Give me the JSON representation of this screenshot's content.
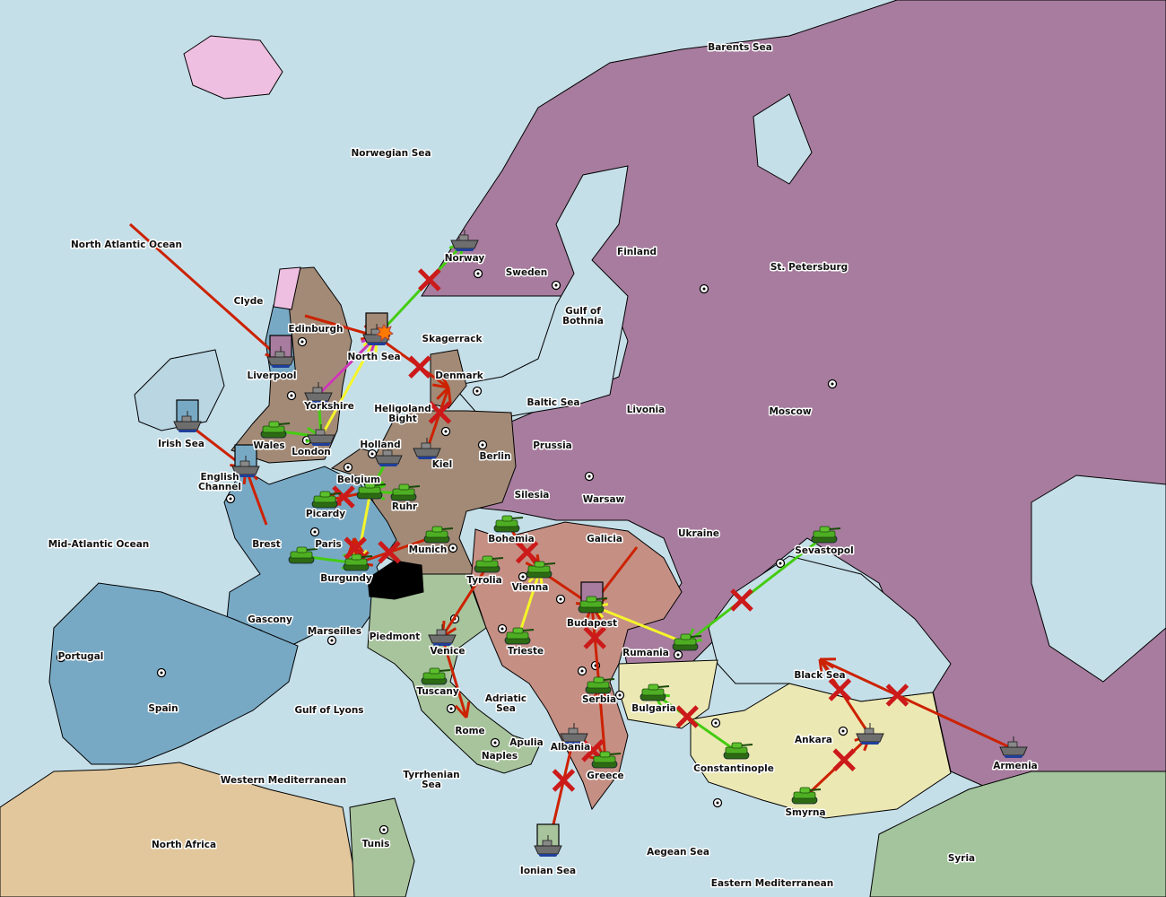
{
  "colors": {
    "sea": "#c5dfe9",
    "russia": "#a77c9e",
    "england": "#a28a76",
    "germany": "#a28a76",
    "france": "#78a9c4",
    "italy": "#a8c49c",
    "austria": "#c58f84",
    "turkey": "#ece8b4",
    "neutral_africa": "#e2c79c",
    "iceland": "#eebfe0",
    "switzerland": "#000000",
    "order_attack": "#cc2200",
    "order_support": "#f5f52a",
    "order_move": "#44cc11",
    "order_convoy": "#cc33bb"
  },
  "provinces": [
    [
      "Barents Sea"
    ],
    [
      "Norwegian Sea"
    ],
    [
      "North Atlantic Ocean"
    ],
    [
      "Norway"
    ],
    [
      "Sweden"
    ],
    [
      "Finland"
    ],
    [
      "St. Petersburg"
    ],
    [
      "Clyde"
    ],
    [
      "Edinburgh"
    ],
    [
      "Liverpool"
    ],
    [
      "North Sea"
    ],
    [
      "Skagerrack"
    ],
    [
      "Gulf of",
      "Bothnia"
    ],
    [
      "Denmark"
    ],
    [
      "Baltic Sea"
    ],
    [
      "Livonia"
    ],
    [
      "Moscow"
    ],
    [
      "Yorkshire"
    ],
    [
      "Heligoland",
      "Bight"
    ],
    [
      "Irish Sea"
    ],
    [
      "Wales"
    ],
    [
      "London"
    ],
    [
      "Holland"
    ],
    [
      "Kiel"
    ],
    [
      "Berlin"
    ],
    [
      "Prussia"
    ],
    [
      "English",
      "Channel"
    ],
    [
      "Belgium"
    ],
    [
      "Silesia"
    ],
    [
      "Warsaw"
    ],
    [
      "Picardy"
    ],
    [
      "Ruhr"
    ],
    [
      "Mid-Atlantic Ocean"
    ],
    [
      "Brest"
    ],
    [
      "Paris"
    ],
    [
      "Munich"
    ],
    [
      "Bohemia"
    ],
    [
      "Galicia"
    ],
    [
      "Ukraine"
    ],
    [
      "Sevastopol"
    ],
    [
      "Burgundy"
    ],
    [
      "Tyrolia"
    ],
    [
      "Vienna"
    ],
    [
      "Gascony"
    ],
    [
      "Budapest"
    ],
    [
      "Marseilles"
    ],
    [
      "Piedmont"
    ],
    [
      "Portugal"
    ],
    [
      "Venice"
    ],
    [
      "Trieste"
    ],
    [
      "Rumania"
    ],
    [
      "Black Sea"
    ],
    [
      "Tuscany"
    ],
    [
      "Serbia"
    ],
    [
      "Bulgaria"
    ],
    [
      "Spain"
    ],
    [
      "Gulf of Lyons"
    ],
    [
      "Adriatic",
      "Sea"
    ],
    [
      "Ankara"
    ],
    [
      "Armenia"
    ],
    [
      "Rome"
    ],
    [
      "Apulia"
    ],
    [
      "Albania"
    ],
    [
      "Naples"
    ],
    [
      "Constantinople"
    ],
    [
      "Greece"
    ],
    [
      "Western Mediterranean"
    ],
    [
      "Tyrrhenian",
      "Sea"
    ],
    [
      "Smyrna"
    ],
    [
      "North Africa"
    ],
    [
      "Tunis"
    ],
    [
      "Aegean Sea"
    ],
    [
      "Syria"
    ],
    [
      "Ionian Sea"
    ],
    [
      "Eastern Mediterranean"
    ]
  ],
  "units": [
    {
      "province": "Norway",
      "type": "fleet"
    },
    {
      "province": "North Sea",
      "type": "fleet",
      "retreat_box": "#a28a76"
    },
    {
      "province": "Liverpool",
      "type": "fleet",
      "retreat_box": "#a77c9e"
    },
    {
      "province": "Yorkshire",
      "type": "fleet"
    },
    {
      "province": "London",
      "type": "fleet"
    },
    {
      "province": "Wales",
      "type": "army"
    },
    {
      "province": "Irish Sea",
      "type": "fleet",
      "retreat_box": "#78a9c4"
    },
    {
      "province": "English Channel",
      "type": "fleet",
      "retreat_box": "#78a9c4"
    },
    {
      "province": "Holland",
      "type": "fleet"
    },
    {
      "province": "Kiel",
      "type": "fleet"
    },
    {
      "province": "Belgium",
      "type": "army"
    },
    {
      "province": "Ruhr",
      "type": "army"
    },
    {
      "province": "Picardy",
      "type": "army"
    },
    {
      "province": "Burgundy",
      "type": "army"
    },
    {
      "province": "Gascony",
      "type": "army"
    },
    {
      "province": "Munich",
      "type": "army"
    },
    {
      "province": "Bohemia",
      "type": "army"
    },
    {
      "province": "Tyrolia",
      "type": "army"
    },
    {
      "province": "Vienna",
      "type": "army"
    },
    {
      "province": "Budapest",
      "type": "army",
      "retreat_box": "#a77c9e"
    },
    {
      "province": "Trieste",
      "type": "army"
    },
    {
      "province": "Venice",
      "type": "fleet"
    },
    {
      "province": "Tuscany",
      "type": "army"
    },
    {
      "province": "Rumania",
      "type": "army"
    },
    {
      "province": "Sevastopol",
      "type": "army"
    },
    {
      "province": "Serbia",
      "type": "army"
    },
    {
      "province": "Bulgaria",
      "type": "army"
    },
    {
      "province": "Albania",
      "type": "fleet"
    },
    {
      "province": "Greece",
      "type": "army"
    },
    {
      "province": "Constantinople",
      "type": "army"
    },
    {
      "province": "Ionian Sea",
      "type": "fleet",
      "retreat_box": "#a8c49c"
    },
    {
      "province": "Smyrna",
      "type": "army"
    },
    {
      "province": "Ankara",
      "type": "fleet"
    },
    {
      "province": "Armenia",
      "type": "fleet"
    }
  ],
  "orders": [
    {
      "from": "North Atlantic Ocean",
      "to": "Liverpool",
      "kind": "attack"
    },
    {
      "from": "Edinburgh",
      "to": "North Sea",
      "kind": "attack"
    },
    {
      "from": "North Sea",
      "to": "Denmark",
      "kind": "attack",
      "failed": true
    },
    {
      "from": "Kiel",
      "to": "Denmark",
      "kind": "attack",
      "failed": true
    },
    {
      "from": "North Sea",
      "to": "Norway",
      "kind": "move",
      "failed": true
    },
    {
      "from": "Yorkshire",
      "to": "North Sea",
      "kind": "support"
    },
    {
      "from": "London",
      "to": "North Sea",
      "kind": "support"
    },
    {
      "from": "Yorkshire",
      "to": "North Sea",
      "kind": "convoy"
    },
    {
      "from": "Wales",
      "to": "London",
      "kind": "move"
    },
    {
      "from": "London",
      "to": "Yorkshire",
      "kind": "move"
    },
    {
      "from": "Irish Sea",
      "to": "English Channel",
      "kind": "attack"
    },
    {
      "from": "Brest",
      "to": "English Channel",
      "kind": "attack"
    },
    {
      "from": "Belgium",
      "to": "Picardy",
      "kind": "attack",
      "failed": true
    },
    {
      "from": "Belgium",
      "to": "Burgundy",
      "kind": "support"
    },
    {
      "from": "Holland",
      "to": "Belgium",
      "kind": "move"
    },
    {
      "from": "Ruhr",
      "to": "Belgium",
      "kind": "move"
    },
    {
      "from": "Gascony",
      "to": "Burgundy",
      "kind": "move"
    },
    {
      "from": "Munich",
      "to": "Burgundy",
      "kind": "attack",
      "failed": true
    },
    {
      "from": "Burgundy",
      "to": "Paris",
      "kind": "attack",
      "failed": true
    },
    {
      "from": "Bohemia",
      "to": "Vienna",
      "kind": "attack",
      "failed": true
    },
    {
      "from": "Tyrolia",
      "to": "Venice",
      "kind": "attack"
    },
    {
      "from": "Venice",
      "to": "Rome",
      "kind": "attack"
    },
    {
      "from": "Vienna",
      "to": "Budapest",
      "kind": "attack"
    },
    {
      "from": "Galicia",
      "to": "Budapest",
      "kind": "attack"
    },
    {
      "from": "Trieste",
      "to": "Vienna",
      "kind": "support"
    },
    {
      "from": "Rumania",
      "to": "Budapest",
      "kind": "support"
    },
    {
      "from": "Sevastopol",
      "to": "Rumania",
      "kind": "move",
      "failed": true
    },
    {
      "from": "Serbia",
      "to": "Budapest",
      "kind": "attack",
      "failed": true
    },
    {
      "from": "Greece",
      "to": "Serbia",
      "kind": "attack"
    },
    {
      "from": "Albania",
      "to": "Greece",
      "kind": "attack",
      "failed": true
    },
    {
      "from": "Ionian Sea",
      "to": "Albania",
      "kind": "attack",
      "failed": true
    },
    {
      "from": "Constantinople",
      "to": "Bulgaria",
      "kind": "move",
      "failed": true
    },
    {
      "from": "Armenia",
      "to": "Black Sea",
      "kind": "attack",
      "failed": true
    },
    {
      "from": "Ankara",
      "to": "Black Sea",
      "kind": "attack",
      "failed": true
    },
    {
      "from": "Smyrna",
      "to": "Ankara",
      "kind": "attack",
      "failed": true
    }
  ]
}
